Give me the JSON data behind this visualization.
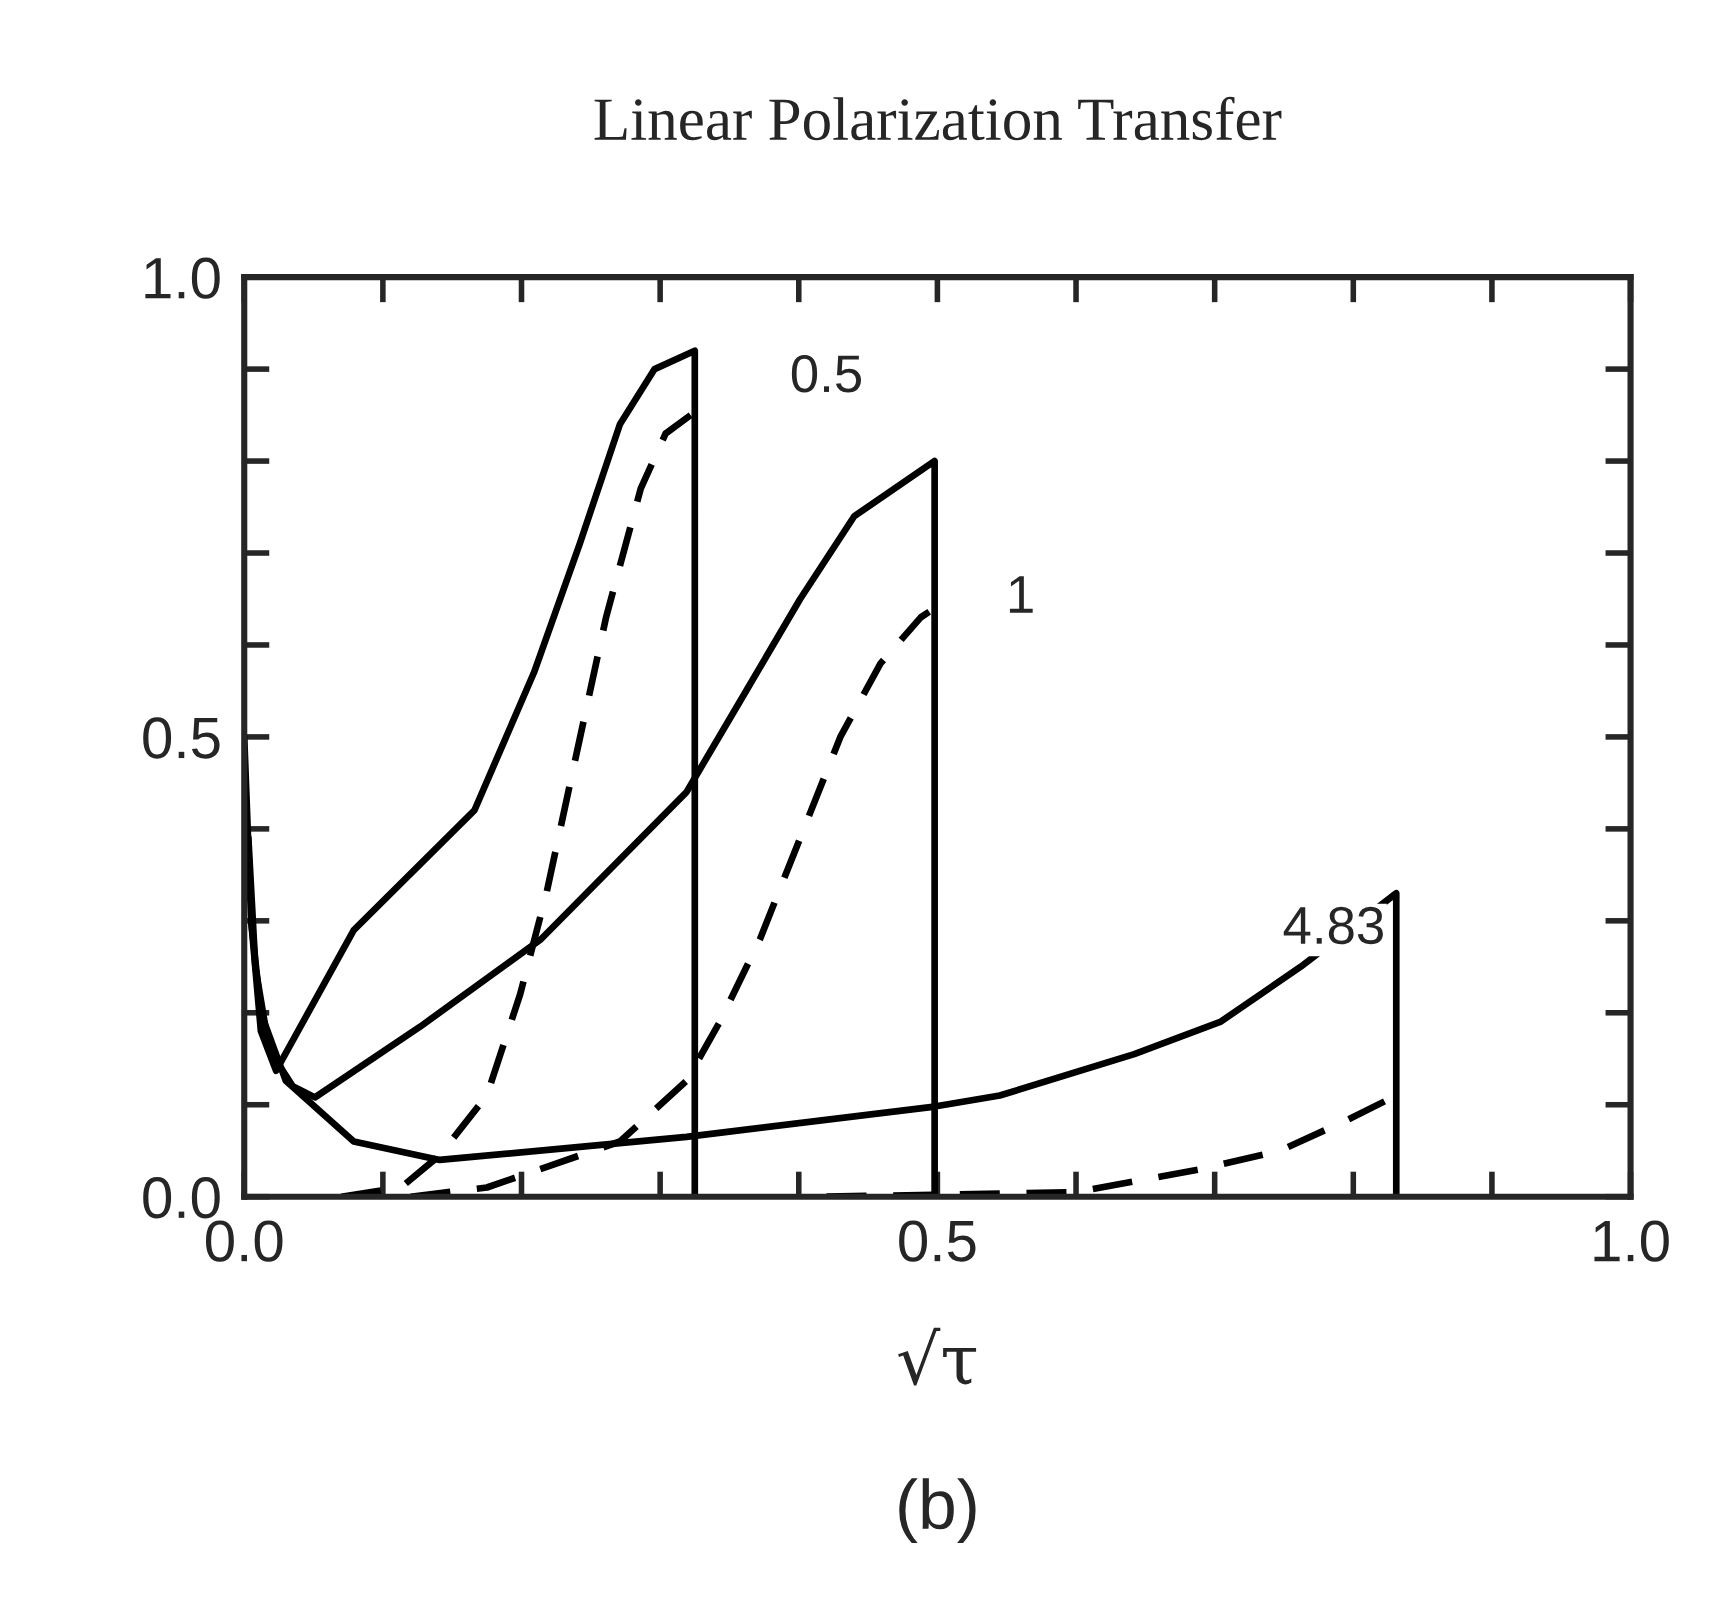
{
  "chart_data": {
    "type": "line",
    "title": "Linear Polarization Transfer",
    "xlabel": "√τ",
    "xlim": [
      0,
      1
    ],
    "ylim": [
      0,
      1
    ],
    "xticks": [
      {
        "value": 0,
        "label": "0.0"
      },
      {
        "value": 0.1,
        "label": null
      },
      {
        "value": 0.2,
        "label": null
      },
      {
        "value": 0.3,
        "label": null
      },
      {
        "value": 0.4,
        "label": null
      },
      {
        "value": 0.5,
        "label": "0.5"
      },
      {
        "value": 0.6,
        "label": null
      },
      {
        "value": 0.7,
        "label": null
      },
      {
        "value": 0.8,
        "label": null
      },
      {
        "value": 0.9,
        "label": null
      },
      {
        "value": 1,
        "label": "1.0"
      }
    ],
    "yticks": [
      {
        "value": 0,
        "label": "0.0"
      },
      {
        "value": 0.1,
        "label": null
      },
      {
        "value": 0.2,
        "label": null
      },
      {
        "value": 0.3,
        "label": null
      },
      {
        "value": 0.4,
        "label": null
      },
      {
        "value": 0.5,
        "label": "0.5"
      },
      {
        "value": 0.6,
        "label": null
      },
      {
        "value": 0.7,
        "label": null
      },
      {
        "value": 0.8,
        "label": null
      },
      {
        "value": 0.9,
        "label": null
      },
      {
        "value": 1,
        "label": "1.0"
      }
    ],
    "grid": false,
    "legend": false,
    "series": [
      {
        "color": "#000000",
        "line_style": "solid",
        "x": [
          0,
          0.005,
          0.012,
          0.023,
          0.079,
          0.166,
          0.209,
          0.242,
          0.271,
          0.296,
          0.325,
          0.325
        ],
        "values": [
          0.5,
          0.3,
          0.18,
          0.137,
          0.29,
          0.42,
          0.57,
          0.71,
          0.84,
          0.9,
          0.92,
          0
        ]
      },
      {
        "color": "#000000",
        "line_style": "dashed",
        "x": [
          0.07,
          0.113,
          0.141,
          0.175,
          0.199,
          0.218,
          0.238,
          0.261,
          0.286,
          0.304,
          0.322
        ],
        "values": [
          0,
          0.01,
          0.045,
          0.11,
          0.22,
          0.33,
          0.47,
          0.63,
          0.77,
          0.83,
          0.85
        ]
      },
      {
        "color": "#000000",
        "line_style": "solid",
        "x": [
          0.003,
          0.008,
          0.018,
          0.035,
          0.051,
          0.127,
          0.214,
          0.319,
          0.362,
          0.401,
          0.44,
          0.498,
          0.498
        ],
        "values": [
          0.39,
          0.25,
          0.16,
          0.12,
          0.108,
          0.185,
          0.28,
          0.44,
          0.55,
          0.65,
          0.74,
          0.8,
          0
        ]
      },
      {
        "color": "#000000",
        "line_style": "dashed",
        "x": [
          0.12,
          0.175,
          0.271,
          0.319,
          0.343,
          0.372,
          0.401,
          0.43,
          0.459,
          0.488,
          0.498
        ],
        "values": [
          0,
          0.01,
          0.06,
          0.126,
          0.19,
          0.28,
          0.39,
          0.5,
          0.58,
          0.63,
          0.64
        ]
      },
      {
        "color": "#000000",
        "line_style": "solid",
        "x": [
          0.005,
          0.012,
          0.03,
          0.079,
          0.141,
          0.319,
          0.498,
          0.545,
          0.642,
          0.704,
          0.762,
          0.831,
          0.831
        ],
        "values": [
          0.3,
          0.2,
          0.126,
          0.06,
          0.04,
          0.065,
          0.098,
          0.11,
          0.155,
          0.19,
          0.25,
          0.33,
          0
        ]
      },
      {
        "color": "#000000",
        "line_style": "dashed",
        "x": [
          0.42,
          0.6,
          0.69,
          0.747,
          0.795,
          0.831
        ],
        "values": [
          0,
          0.005,
          0.03,
          0.05,
          0.083,
          0.11
        ]
      }
    ],
    "annotations": [
      "0.5",
      "1",
      "4.83",
      "(b)"
    ]
  }
}
